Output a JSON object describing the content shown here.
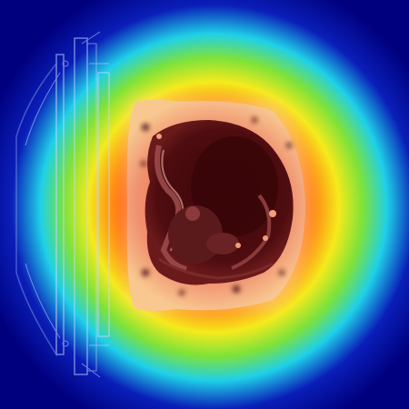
{
  "image": {
    "kind": "mri-saliency-heatmap",
    "colormap": "jet",
    "colors": {
      "background_deep": "#00007e",
      "background_blue": "#0a1eb8",
      "ring_cyan": "#1fd0e8",
      "ring_green": "#7ee23a",
      "ring_yellow": "#f5ea1c",
      "ring_orange": "#ff8a12",
      "ring_red": "#e61e12",
      "body_glow": "#f6c48e",
      "body_outer": "#f0a07a",
      "tissue_dark": "#4a0c10",
      "tissue_mid": "#8a3a3a",
      "coil_line": "#c8d8ff"
    }
  }
}
